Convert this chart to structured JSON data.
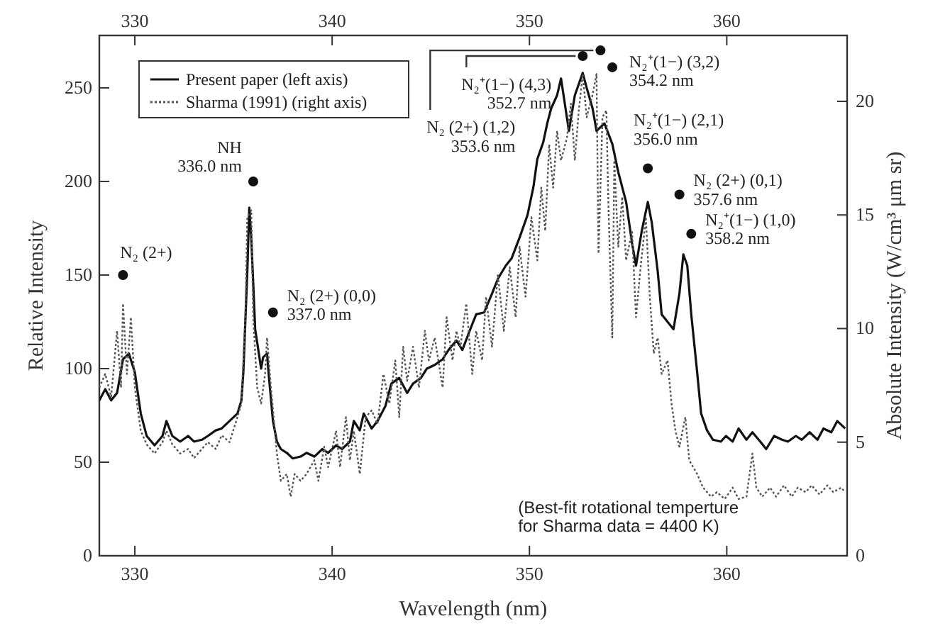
{
  "chart_data": {
    "type": "line",
    "xlabel": "Wavelength (nm)",
    "ylabel": "Relative Intensity",
    "y2label": "Absolute Intensity (W/cm³ μm sr)",
    "xlim": [
      328.2,
      366.1
    ],
    "xticks": [
      330,
      340,
      350,
      360
    ],
    "x2lim": [
      328.2,
      366.1
    ],
    "x2ticks": [
      330,
      340,
      350,
      360
    ],
    "ylim": [
      0,
      278
    ],
    "yticks": [
      0,
      50,
      100,
      150,
      200,
      250
    ],
    "y2lim": [
      0,
      22.9
    ],
    "y2ticks": [
      0,
      5,
      10,
      15,
      20
    ],
    "legend": "top left",
    "grid": false,
    "marker": "none",
    "series": [
      {
        "name": "Present paper (left axis)",
        "color": "#111111",
        "line_style": "solid",
        "x": [
          328.2,
          328.5,
          328.8,
          329.1,
          329.4,
          329.7,
          330.0,
          330.3,
          330.6,
          331.0,
          331.4,
          331.6,
          331.9,
          332.3,
          332.7,
          333.0,
          333.4,
          333.7,
          334.1,
          334.4,
          334.8,
          335.2,
          335.4,
          335.5,
          335.7,
          335.8,
          335.9,
          336.1,
          336.2,
          336.4,
          336.5,
          336.7,
          336.8,
          337.0,
          337.2,
          337.4,
          337.7,
          338.0,
          338.4,
          338.7,
          339.1,
          339.5,
          339.8,
          340.2,
          340.5,
          340.9,
          341.1,
          341.4,
          341.6,
          342.0,
          342.3,
          342.7,
          343.0,
          343.4,
          343.8,
          344.1,
          344.5,
          344.8,
          345.2,
          345.6,
          345.9,
          346.3,
          346.6,
          347.0,
          347.3,
          347.7,
          348.1,
          348.4,
          348.8,
          349.1,
          349.5,
          349.9,
          350.2,
          350.4,
          350.7,
          350.9,
          351.1,
          351.4,
          351.6,
          352.0,
          352.3,
          352.7,
          352.9,
          353.2,
          353.4,
          353.8,
          354.2,
          354.5,
          354.9,
          355.2,
          355.4,
          355.7,
          356.0,
          356.2,
          356.5,
          356.7,
          357.0,
          357.3,
          357.6,
          357.8,
          358.0,
          358.2,
          358.5,
          358.7,
          359.0,
          359.3,
          359.7,
          359.96,
          360.3,
          360.6,
          361.0,
          361.3,
          361.7,
          362.0,
          362.4,
          362.8,
          363.1,
          363.5,
          363.8,
          364.2,
          364.6,
          364.9,
          365.3,
          365.6,
          366.0
        ],
        "values": [
          83,
          89,
          83,
          87,
          105,
          108,
          98,
          76,
          64,
          59,
          64,
          72,
          64,
          61,
          64,
          61,
          62,
          64,
          67,
          68,
          72,
          76,
          83,
          98,
          152,
          186,
          170,
          121,
          114,
          100,
          106,
          108,
          95,
          72,
          61,
          57,
          55,
          52,
          53,
          55,
          53,
          57,
          55,
          59,
          57,
          61,
          72,
          67,
          76,
          68,
          72,
          80,
          92,
          95,
          87,
          92,
          95,
          100,
          102,
          105,
          110,
          115,
          110,
          121,
          129,
          130,
          140,
          148,
          155,
          159,
          170,
          182,
          197,
          212,
          221,
          231,
          239,
          246,
          255,
          227,
          246,
          258,
          250,
          239,
          227,
          231,
          220,
          205,
          189,
          167,
          155,
          174,
          189,
          178,
          152,
          129,
          125,
          121,
          140,
          161,
          155,
          129,
          98,
          76,
          67,
          62,
          61,
          64,
          61,
          68,
          62,
          66,
          61,
          57,
          64,
          62,
          61,
          64,
          62,
          66,
          62,
          68,
          66,
          72,
          68
        ]
      },
      {
        "name": "Sharma (1991) (right axis)",
        "color": "#555555",
        "line_style": "dotted",
        "axis": "y2",
        "x": [
          328.2,
          328.5,
          328.8,
          329.1,
          329.3,
          329.4,
          329.6,
          329.8,
          330.0,
          330.3,
          330.6,
          331.0,
          331.4,
          331.6,
          331.9,
          332.3,
          332.7,
          333.0,
          333.4,
          333.7,
          334.1,
          334.4,
          334.8,
          335.2,
          335.4,
          335.6,
          335.7,
          335.9,
          336.0,
          336.2,
          336.4,
          336.6,
          336.7,
          336.9,
          337.2,
          337.4,
          337.7,
          337.9,
          338.1,
          338.4,
          338.7,
          339.1,
          339.3,
          339.6,
          339.8,
          340.2,
          340.4,
          340.7,
          340.9,
          341.1,
          341.4,
          341.7,
          342.0,
          342.3,
          342.6,
          342.9,
          343.2,
          343.4,
          343.6,
          343.8,
          344.1,
          344.4,
          344.7,
          344.9,
          345.2,
          345.6,
          345.8,
          346.1,
          346.3,
          346.5,
          346.8,
          347.1,
          347.3,
          347.6,
          347.8,
          348.1,
          348.4,
          348.7,
          349.0,
          349.3,
          349.5,
          349.8,
          350.1,
          350.4,
          350.6,
          350.8,
          351.0,
          351.2,
          351.4,
          351.6,
          351.9,
          352.1,
          352.3,
          352.5,
          352.7,
          352.9,
          353.2,
          353.4,
          353.5,
          353.7,
          353.9,
          354.0,
          354.2,
          354.3,
          354.5,
          354.7,
          354.9,
          355.2,
          355.4,
          355.6,
          355.9,
          356.1,
          356.3,
          356.5,
          356.7,
          357.0,
          357.2,
          357.4,
          357.6,
          357.9,
          358.1,
          358.5,
          358.8,
          359.2,
          359.5,
          359.9,
          360.3,
          360.6,
          361.0,
          361.3,
          361.5,
          361.8,
          362.2,
          362.5,
          362.9,
          363.3,
          363.6,
          364.0,
          364.3,
          364.7,
          365.1,
          365.4,
          365.8,
          366.0
        ],
        "values": [
          7.4,
          8.0,
          7.0,
          9.9,
          7.4,
          11.1,
          8.0,
          10.5,
          7.4,
          5.5,
          4.9,
          4.5,
          5.0,
          5.5,
          4.9,
          4.5,
          4.7,
          4.3,
          4.7,
          5.0,
          4.7,
          5.3,
          5.0,
          6.1,
          6.7,
          10.5,
          14.9,
          15.2,
          10.5,
          7.4,
          6.7,
          8.0,
          9.6,
          7.4,
          4.5,
          3.3,
          3.6,
          2.6,
          3.6,
          3.3,
          3.6,
          4.2,
          3.3,
          4.8,
          3.9,
          5.5,
          3.9,
          6.1,
          4.2,
          5.5,
          3.6,
          6.1,
          6.4,
          5.8,
          8.0,
          6.7,
          8.6,
          6.1,
          9.2,
          7.7,
          9.2,
          7.4,
          9.9,
          8.6,
          9.6,
          7.4,
          10.5,
          8.6,
          9.9,
          9.2,
          11.1,
          8.0,
          9.9,
          8.6,
          11.4,
          9.2,
          12.4,
          9.9,
          12.7,
          10.5,
          13.6,
          11.4,
          14.9,
          13.0,
          16.2,
          14.3,
          18.1,
          16.2,
          18.7,
          17.4,
          18.4,
          19.9,
          17.4,
          19.6,
          21.2,
          19.3,
          20.3,
          21.2,
          13.3,
          19.3,
          19.6,
          15.5,
          9.6,
          17.4,
          13.6,
          15.8,
          13.0,
          14.3,
          10.5,
          12.4,
          14.9,
          11.4,
          8.9,
          9.6,
          8.0,
          8.6,
          6.7,
          5.5,
          4.8,
          6.1,
          4.2,
          3.6,
          3.0,
          2.6,
          2.8,
          2.5,
          3.0,
          2.5,
          2.6,
          4.5,
          3.0,
          2.6,
          3.0,
          2.6,
          3.1,
          2.6,
          3.0,
          2.8,
          3.1,
          2.7,
          3.1,
          2.8,
          3.0,
          2.8
        ]
      }
    ],
    "annotations": [
      {
        "text": "N₂ (2+)",
        "x": 329.4,
        "y": 150
      },
      {
        "text": "NH\n336.0 nm",
        "x": 336.0,
        "y": 200
      },
      {
        "text": "N₂ (2+) (0,0)\n337.0 nm",
        "x": 337.0,
        "y": 130
      },
      {
        "text": "N₂⁺(1−) (4,3)\n352.7 nm",
        "x": 352.7,
        "y": 267
      },
      {
        "text": "N₂ (2+) (1,2)\n353.6 nm",
        "x": 353.6,
        "y": 270
      },
      {
        "text": "N₂⁺(1−) (3,2)\n354.2 nm",
        "x": 354.2,
        "y": 261
      },
      {
        "text": "N₂⁺(1−) (2,1)\n356.0 nm",
        "x": 356.0,
        "y": 207
      },
      {
        "text": "N₂ (2+) (0,1)\n357.6 nm",
        "x": 357.6,
        "y": 193
      },
      {
        "text": "N₂⁺(1−) (1,0)\n358.2 nm",
        "x": 358.2,
        "y": 172
      },
      "(Best-fit rotational temperture\nfor Sharma data = 4400 K)"
    ]
  }
}
